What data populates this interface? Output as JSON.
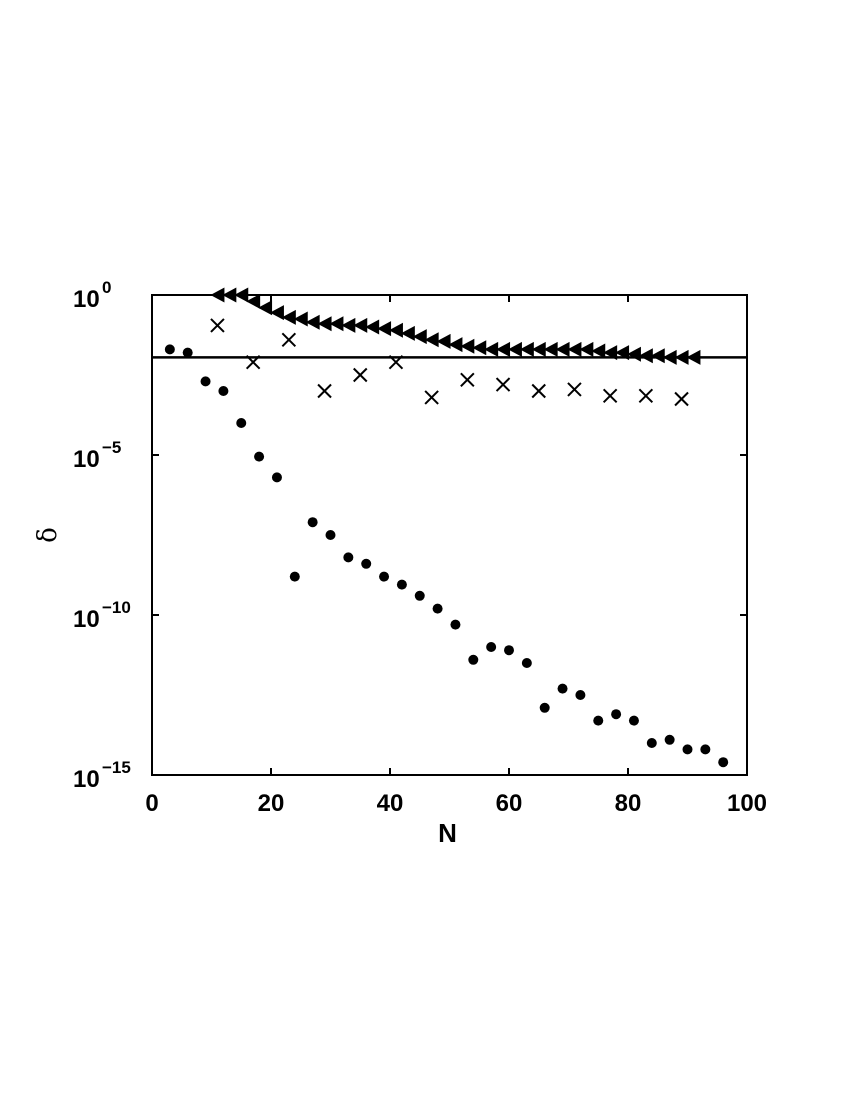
{
  "chart_data": {
    "type": "scatter",
    "xlabel": "N",
    "ylabel": "δ",
    "xlim": [
      0,
      100
    ],
    "ylim_log10": [
      -15,
      0
    ],
    "y_scale": "log",
    "grid": false,
    "x_ticks": [
      0,
      20,
      40,
      60,
      80,
      100
    ],
    "y_ticks": [
      {
        "exponent": 0,
        "base": "10",
        "sup": "0"
      },
      {
        "exponent": -5,
        "base": "10",
        "sup": "−5"
      },
      {
        "exponent": -10,
        "base": "10",
        "sup": "−10"
      },
      {
        "exponent": -15,
        "base": "10",
        "sup": "−15"
      }
    ],
    "reference_line_log10": -1.95,
    "series": [
      {
        "marker": "dot",
        "points": [
          [
            3,
            -1.7
          ],
          [
            6,
            -1.8
          ],
          [
            9,
            -2.7
          ],
          [
            12,
            -3.0
          ],
          [
            15,
            -4.0
          ],
          [
            18,
            -5.05
          ],
          [
            21,
            -5.7
          ],
          [
            24,
            -8.8
          ],
          [
            27,
            -7.1
          ],
          [
            30,
            -7.5
          ],
          [
            33,
            -8.2
          ],
          [
            36,
            -8.4
          ],
          [
            39,
            -8.8
          ],
          [
            42,
            -9.05
          ],
          [
            45,
            -9.4
          ],
          [
            48,
            -9.8
          ],
          [
            51,
            -10.3
          ],
          [
            54,
            -11.4
          ],
          [
            57,
            -11.0
          ],
          [
            60,
            -11.1
          ],
          [
            63,
            -11.5
          ],
          [
            66,
            -12.9
          ],
          [
            69,
            -12.3
          ],
          [
            72,
            -12.5
          ],
          [
            75,
            -13.3
          ],
          [
            78,
            -13.1
          ],
          [
            81,
            -13.3
          ],
          [
            84,
            -14.0
          ],
          [
            87,
            -13.9
          ],
          [
            90,
            -14.2
          ],
          [
            93,
            -14.2
          ],
          [
            96,
            -14.6
          ]
        ]
      },
      {
        "marker": "x",
        "points": [
          [
            11,
            -0.95
          ],
          [
            17,
            -2.1
          ],
          [
            23,
            -1.4
          ],
          [
            29,
            -3.0
          ],
          [
            35,
            -2.5
          ],
          [
            41,
            -2.1
          ],
          [
            47,
            -3.2
          ],
          [
            53,
            -2.65
          ],
          [
            59,
            -2.8
          ],
          [
            65,
            -3.0
          ],
          [
            71,
            -2.95
          ],
          [
            77,
            -3.15
          ],
          [
            83,
            -3.15
          ],
          [
            89,
            -3.25
          ]
        ]
      },
      {
        "marker": "triangle-left",
        "points": [
          [
            11,
            0.0
          ],
          [
            13,
            0.0
          ],
          [
            15,
            0.0
          ],
          [
            17,
            -0.2
          ],
          [
            19,
            -0.4
          ],
          [
            21,
            -0.55
          ],
          [
            23,
            -0.7
          ],
          [
            25,
            -0.75
          ],
          [
            27,
            -0.85
          ],
          [
            29,
            -0.9
          ],
          [
            31,
            -0.9
          ],
          [
            33,
            -0.95
          ],
          [
            35,
            -0.95
          ],
          [
            37,
            -1.0
          ],
          [
            39,
            -1.05
          ],
          [
            41,
            -1.1
          ],
          [
            43,
            -1.2
          ],
          [
            45,
            -1.3
          ],
          [
            47,
            -1.4
          ],
          [
            49,
            -1.45
          ],
          [
            51,
            -1.55
          ],
          [
            53,
            -1.6
          ],
          [
            55,
            -1.65
          ],
          [
            57,
            -1.7
          ],
          [
            59,
            -1.7
          ],
          [
            61,
            -1.7
          ],
          [
            63,
            -1.7
          ],
          [
            65,
            -1.7
          ],
          [
            67,
            -1.7
          ],
          [
            69,
            -1.7
          ],
          [
            71,
            -1.7
          ],
          [
            73,
            -1.7
          ],
          [
            75,
            -1.75
          ],
          [
            77,
            -1.8
          ],
          [
            79,
            -1.8
          ],
          [
            81,
            -1.85
          ],
          [
            83,
            -1.9
          ],
          [
            85,
            -1.9
          ],
          [
            87,
            -1.95
          ],
          [
            89,
            -1.95
          ],
          [
            91,
            -1.95
          ]
        ]
      }
    ]
  }
}
